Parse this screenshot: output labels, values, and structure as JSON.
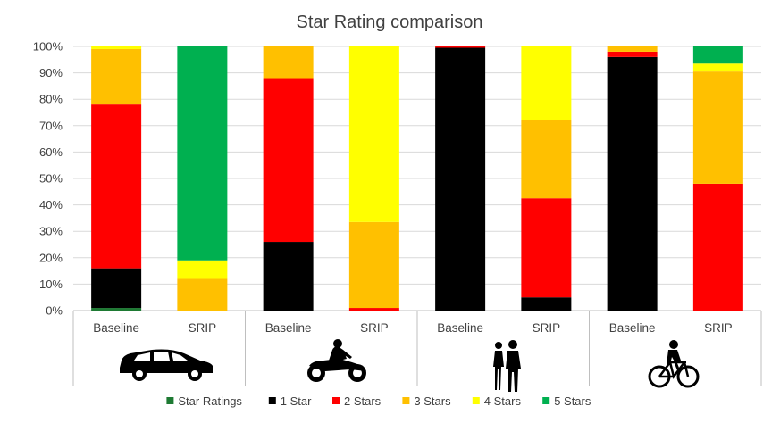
{
  "chart_data": {
    "type": "bar",
    "stacked": true,
    "title": "Star Rating comparison",
    "ylim": [
      0,
      100
    ],
    "y_ticks": [
      "0%",
      "10%",
      "20%",
      "30%",
      "40%",
      "50%",
      "60%",
      "70%",
      "80%",
      "90%",
      "100%"
    ],
    "grid": true,
    "legend_position": "bottom",
    "categories": [
      "Baseline",
      "SRIP",
      "Baseline",
      "SRIP",
      "Baseline",
      "SRIP",
      "Baseline",
      "SRIP"
    ],
    "groups": [
      {
        "icon": "car-icon"
      },
      {
        "icon": "motorcycle-icon"
      },
      {
        "icon": "pedestrians-icon"
      },
      {
        "icon": "bicycle-icon"
      }
    ],
    "series": [
      {
        "name": "Star Ratings",
        "color": "#1e7a33",
        "values": [
          1,
          0,
          0,
          0,
          0,
          0,
          0,
          0
        ]
      },
      {
        "name": "1 Star",
        "color": "#000000",
        "values": [
          15,
          0,
          26,
          0,
          99.5,
          5,
          96,
          0
        ]
      },
      {
        "name": "2 Stars",
        "color": "#ff0000",
        "values": [
          62,
          0,
          62,
          1,
          0.5,
          37.5,
          2,
          48
        ]
      },
      {
        "name": "3 Stars",
        "color": "#ffc000",
        "values": [
          21,
          12,
          12,
          32.5,
          0,
          29.5,
          2,
          42.5
        ]
      },
      {
        "name": "4 Stars",
        "color": "#ffff00",
        "values": [
          1,
          7,
          0,
          66.5,
          0,
          28,
          0,
          3
        ]
      },
      {
        "name": "5 Stars",
        "color": "#00b050",
        "values": [
          0,
          81,
          0,
          0,
          0,
          0,
          0,
          6.5
        ]
      }
    ]
  }
}
